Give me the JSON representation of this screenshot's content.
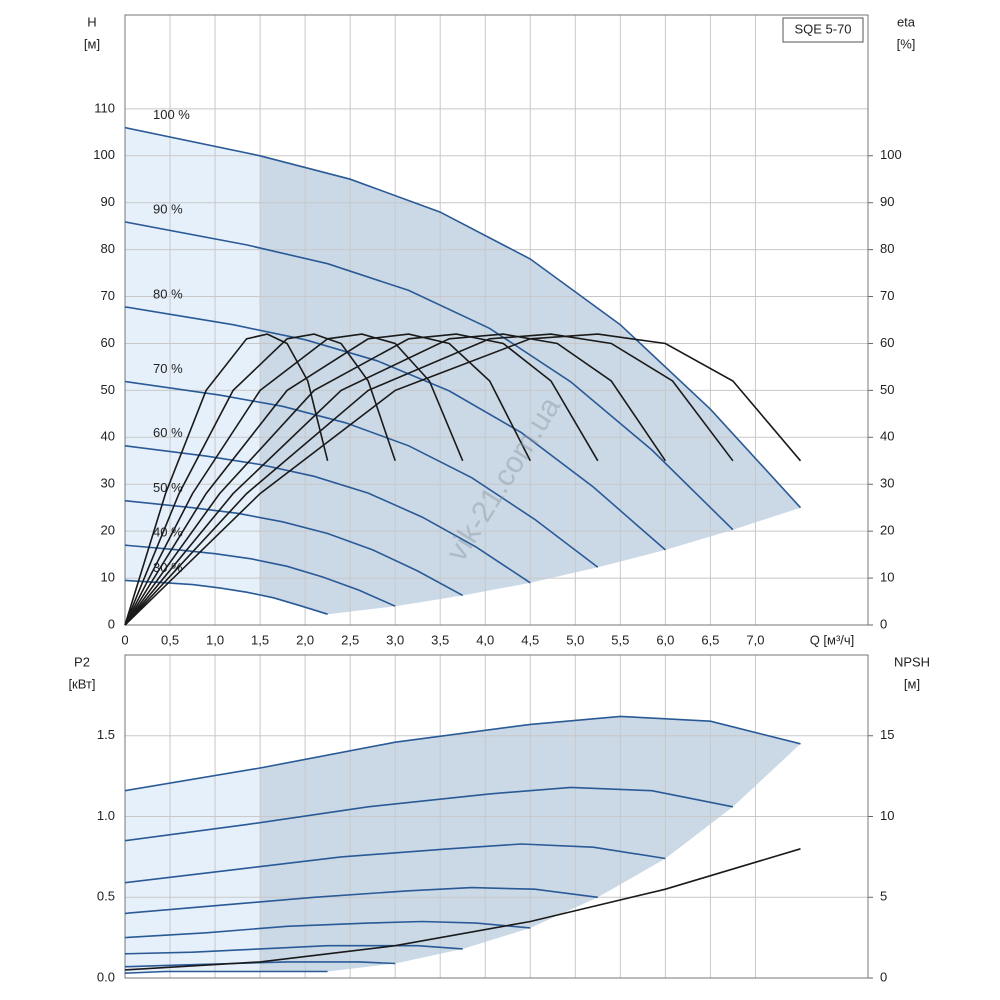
{
  "chart_data": [
    {
      "type": "line",
      "title": "SQE 5-70",
      "y_label": [
        "H",
        "[м]"
      ],
      "y2_label": [
        "eta",
        "[%]"
      ],
      "x_label": "Q [м³/ч]",
      "annotation": "vik-21.com.ua",
      "grid": true,
      "xlim": [
        0,
        8.25
      ],
      "ylim": [
        0,
        130
      ],
      "y2lim": [
        0,
        130
      ],
      "xticks": [
        0,
        {
          "value": 0.5,
          "label": "0,5"
        },
        {
          "value": 1,
          "label": "1,0"
        },
        {
          "value": 1.5,
          "label": "1,5"
        },
        {
          "value": 2,
          "label": "2,0"
        },
        {
          "value": 2.5,
          "label": "2,5"
        },
        {
          "value": 3,
          "label": "3,0"
        },
        {
          "value": 3.5,
          "label": "3,5"
        },
        {
          "value": 4,
          "label": "4,0"
        },
        {
          "value": 4.5,
          "label": "4,5"
        },
        {
          "value": 5,
          "label": "5,0"
        },
        {
          "value": 5.5,
          "label": "5,5"
        },
        {
          "value": 6,
          "label": "6,0"
        },
        {
          "value": 6.5,
          "label": "6,5"
        },
        {
          "value": 7,
          "label": "7,0"
        }
      ],
      "yticks": [
        0,
        10,
        20,
        30,
        40,
        50,
        60,
        70,
        80,
        90,
        100,
        110
      ],
      "y2ticks": [
        0,
        10,
        20,
        30,
        40,
        50,
        60,
        70,
        80,
        90,
        100
      ],
      "series": [
        {
          "name": "100 %",
          "color": "#2a5a96",
          "x": [
            0,
            1.5,
            2.5,
            3.5,
            4.5,
            5.5,
            6.5,
            7.5
          ],
          "values": [
            106,
            100,
            95,
            88,
            78,
            64,
            46,
            25
          ]
        },
        {
          "name": "90 %",
          "color": "#2a5a96",
          "x": [
            0,
            1.35,
            2.25,
            3.15,
            4.05,
            4.95,
            5.85,
            6.75
          ],
          "values": [
            85.9,
            81,
            77,
            71.3,
            63.2,
            51.8,
            37.3,
            20.3
          ]
        },
        {
          "name": "80 %",
          "color": "#2a5a96",
          "x": [
            0,
            1.2,
            2,
            2.8,
            3.6,
            4.4,
            5.2,
            6
          ],
          "values": [
            67.8,
            64,
            60.8,
            56.3,
            49.9,
            41,
            29.4,
            16
          ]
        },
        {
          "name": "70 %",
          "color": "#2a5a96",
          "x": [
            0,
            1.05,
            1.75,
            2.45,
            3.15,
            3.85,
            4.55,
            5.25
          ],
          "values": [
            51.9,
            49,
            46.6,
            43.1,
            38.2,
            31.4,
            22.5,
            12.3
          ]
        },
        {
          "name": "60 %",
          "color": "#2a5a96",
          "x": [
            0,
            0.9,
            1.5,
            2.1,
            2.7,
            3.3,
            3.9,
            4.5
          ],
          "values": [
            38.2,
            36,
            34.2,
            31.7,
            28.1,
            23,
            16.6,
            9
          ]
        },
        {
          "name": "50 %",
          "color": "#2a5a96",
          "x": [
            0,
            0.75,
            1.25,
            1.75,
            2.25,
            2.75,
            3.25,
            3.75
          ],
          "values": [
            26.5,
            25,
            23.8,
            22,
            19.5,
            16,
            11.5,
            6.3
          ]
        },
        {
          "name": "40 %",
          "color": "#2a5a96",
          "x": [
            0,
            0.6,
            1,
            1.4,
            1.8,
            2.2,
            2.6,
            3
          ],
          "values": [
            17,
            16,
            15.2,
            14.1,
            12.5,
            10.2,
            7.4,
            4
          ]
        },
        {
          "name": "30 %",
          "color": "#2a5a96",
          "x": [
            0,
            0.45,
            0.75,
            1.05,
            1.35,
            1.65,
            1.95,
            2.25
          ],
          "values": [
            9.5,
            9,
            8.6,
            7.9,
            7,
            5.8,
            4.1,
            2.3
          ]
        },
        {
          "axis": "y2",
          "color": "#1a1a1a",
          "x": [
            0,
            1.5,
            3,
            4.5,
            5.25,
            6,
            6.75,
            7.5
          ],
          "values": [
            0,
            28,
            50,
            61,
            62,
            60,
            52,
            35
          ]
        },
        {
          "axis": "y2",
          "color": "#1a1a1a",
          "x": [
            0,
            1.35,
            2.7,
            4.05,
            4.73,
            5.4,
            6.08,
            6.75
          ],
          "values": [
            0,
            28,
            50,
            61,
            62,
            60,
            52,
            35
          ]
        },
        {
          "axis": "y2",
          "color": "#1a1a1a",
          "x": [
            0,
            1.2,
            2.4,
            3.6,
            4.2,
            4.8,
            5.4,
            6
          ],
          "values": [
            0,
            28,
            50,
            61,
            62,
            60,
            52,
            35
          ]
        },
        {
          "axis": "y2",
          "color": "#1a1a1a",
          "x": [
            0,
            1.05,
            2.1,
            3.15,
            3.68,
            4.2,
            4.73,
            5.25
          ],
          "values": [
            0,
            28,
            50,
            61,
            62,
            60,
            52,
            35
          ]
        },
        {
          "axis": "y2",
          "color": "#1a1a1a",
          "x": [
            0,
            0.9,
            1.8,
            2.7,
            3.15,
            3.6,
            4.05,
            4.5
          ],
          "values": [
            0,
            28,
            50,
            61,
            62,
            60,
            52,
            35
          ]
        },
        {
          "axis": "y2",
          "color": "#1a1a1a",
          "x": [
            0,
            0.75,
            1.5,
            2.25,
            2.63,
            3,
            3.38,
            3.75
          ],
          "values": [
            0,
            28,
            50,
            61,
            62,
            60,
            52,
            35
          ]
        },
        {
          "axis": "y2",
          "color": "#1a1a1a",
          "x": [
            0,
            0.6,
            1.2,
            1.8,
            2.1,
            2.4,
            2.7,
            3
          ],
          "values": [
            0,
            28,
            50,
            61,
            62,
            60,
            52,
            35
          ]
        },
        {
          "axis": "y2",
          "color": "#1a1a1a",
          "x": [
            0,
            0.45,
            0.9,
            1.35,
            1.58,
            1.8,
            2.03,
            2.25
          ],
          "values": [
            0,
            28,
            50,
            61,
            62,
            60,
            52,
            35
          ]
        }
      ]
    },
    {
      "type": "line",
      "y_label": [
        "P2",
        "[кВт]"
      ],
      "y2_label": [
        "NPSH",
        "[м]"
      ],
      "grid": true,
      "xlim": [
        0,
        8.25
      ],
      "ylim": [
        0,
        2
      ],
      "y2lim": [
        0,
        20
      ],
      "yticks": [
        {
          "value": 0,
          "label": "0.0"
        },
        0.5,
        {
          "value": 1,
          "label": "1.0"
        },
        1.5
      ],
      "y2ticks": [
        0,
        5,
        10,
        15
      ],
      "series": [
        {
          "color": "#2a5a96",
          "x": [
            0,
            1.5,
            3,
            4.5,
            5.5,
            6.5,
            7.5
          ],
          "values": [
            1.16,
            1.3,
            1.46,
            1.57,
            1.62,
            1.59,
            1.45
          ]
        },
        {
          "color": "#2a5a96",
          "x": [
            0,
            1.35,
            2.7,
            4.05,
            4.95,
            5.85,
            6.75
          ],
          "values": [
            0.85,
            0.95,
            1.06,
            1.14,
            1.18,
            1.16,
            1.06
          ]
        },
        {
          "color": "#2a5a96",
          "x": [
            0,
            1.2,
            2.4,
            3.6,
            4.4,
            5.2,
            6
          ],
          "values": [
            0.59,
            0.67,
            0.75,
            0.8,
            0.83,
            0.81,
            0.74
          ]
        },
        {
          "color": "#2a5a96",
          "x": [
            0,
            1.05,
            2.1,
            3.15,
            3.85,
            4.55,
            5.25
          ],
          "values": [
            0.4,
            0.45,
            0.5,
            0.54,
            0.56,
            0.55,
            0.5
          ]
        },
        {
          "color": "#2a5a96",
          "x": [
            0,
            0.9,
            1.8,
            2.7,
            3.3,
            3.9,
            4.5
          ],
          "values": [
            0.25,
            0.28,
            0.32,
            0.34,
            0.35,
            0.34,
            0.31
          ]
        },
        {
          "color": "#2a5a96",
          "x": [
            0,
            0.75,
            1.5,
            2.25,
            2.75,
            3.25,
            3.75
          ],
          "values": [
            0.15,
            0.16,
            0.18,
            0.2,
            0.2,
            0.2,
            0.18
          ]
        },
        {
          "color": "#2a5a96",
          "x": [
            0,
            0.6,
            1.2,
            1.8,
            2.2,
            2.6,
            3
          ],
          "values": [
            0.07,
            0.08,
            0.09,
            0.1,
            0.1,
            0.1,
            0.09
          ]
        },
        {
          "color": "#2a5a96",
          "x": [
            0,
            0.45,
            0.9,
            1.35,
            1.65,
            1.95,
            2.25
          ],
          "values": [
            0.03,
            0.04,
            0.04,
            0.04,
            0.04,
            0.04,
            0.04
          ]
        },
        {
          "axis": "y2",
          "color": "#1a1a1a",
          "x": [
            0,
            1.5,
            3,
            4.5,
            6,
            7.5
          ],
          "values": [
            0.5,
            1,
            2,
            3.5,
            5.5,
            8
          ]
        }
      ]
    }
  ]
}
